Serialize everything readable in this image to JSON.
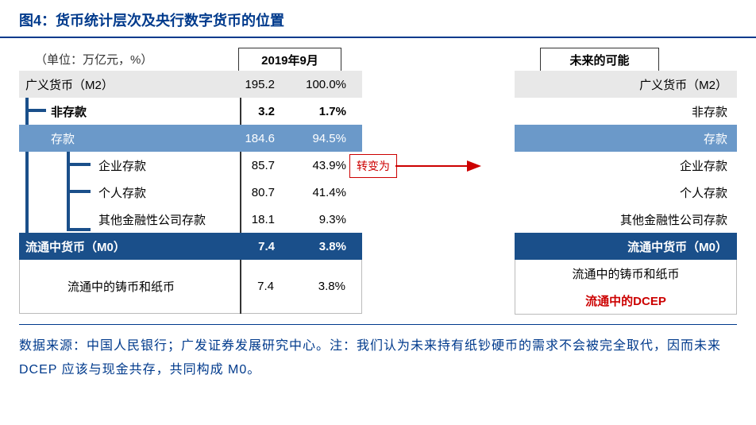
{
  "title": "图4：货币统计层次及央行数字货币的位置",
  "unit": "（单位：万亿元，%）",
  "header_left": "2019年9月",
  "header_right": "未来的可能",
  "arrow_label": "转变为",
  "colors": {
    "title": "#003a8c",
    "gray_row": "#e8e8e8",
    "blue_light": "#6b99c9",
    "blue_dark": "#1a4f8a",
    "red": "#c00000",
    "divider": "#333333",
    "tree_bar": "#1a4f8a"
  },
  "left_rows": [
    {
      "label": "广义货币（M2）",
      "v1": "195.2",
      "v2": "100.0%",
      "bg": "gray",
      "indent": 0
    },
    {
      "label": "非存款",
      "v1": "3.2",
      "v2": "1.7%",
      "bg": "none",
      "indent": 1,
      "bold": true
    },
    {
      "label": "存款",
      "v1": "184.6",
      "v2": "94.5%",
      "bg": "bluelight",
      "indent": 1
    },
    {
      "label": "企业存款",
      "v1": "85.7",
      "v2": "43.9%",
      "bg": "none",
      "indent": 2
    },
    {
      "label": "个人存款",
      "v1": "80.7",
      "v2": "41.4%",
      "bg": "none",
      "indent": 2
    },
    {
      "label": "其他金融性公司存款",
      "v1": "18.1",
      "v2": "9.3%",
      "bg": "none",
      "indent": 2
    },
    {
      "label": "流通中货币（M0）",
      "v1": "7.4",
      "v2": "3.8%",
      "bg": "bluedark",
      "indent": 0
    },
    {
      "label": "流通中的铸币和纸币",
      "v1": "7.4",
      "v2": "3.8%",
      "bg": "none",
      "indent": "cash"
    }
  ],
  "right_rows": [
    {
      "label": "广义货币（M2）",
      "bg": "gray"
    },
    {
      "label": "非存款",
      "bg": "none"
    },
    {
      "label": "存款",
      "bg": "bluelight"
    },
    {
      "label": "企业存款",
      "bg": "none"
    },
    {
      "label": "个人存款",
      "bg": "none"
    },
    {
      "label": "其他金融性公司存款",
      "bg": "none"
    },
    {
      "label": "流通中货币（M0）",
      "bg": "bluedark"
    },
    {
      "label": "流通中的铸币和纸币",
      "bg": "none",
      "center": true
    },
    {
      "label": "流通中的DCEP",
      "bg": "none",
      "center": true,
      "red": true
    }
  ],
  "source": "数据来源：中国人民银行；广发证券发展研究中心。注：我们认为未来持有纸钞硬币的需求不会被完全取代，因而未来 DCEP 应该与现金共存，共同构成 M0。"
}
